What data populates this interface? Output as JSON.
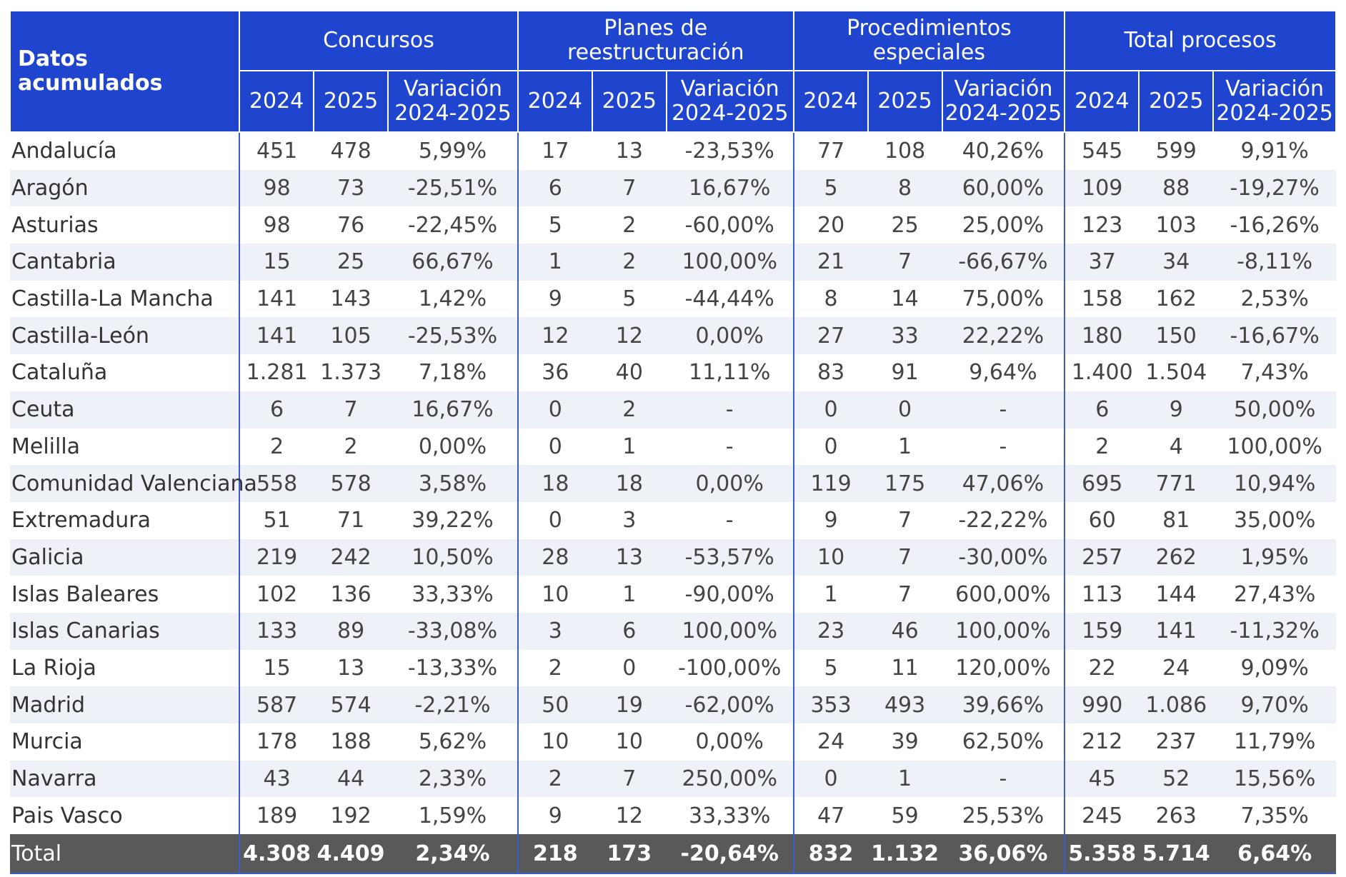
{
  "chart_data": {
    "type": "table",
    "corner_label": "Datos acumulados",
    "groups": [
      "Concursos",
      "Planes de reestructuración",
      "Procedimientos especiales",
      "Total procesos"
    ],
    "subheaders": [
      "2024",
      "2025",
      "Variación 2024-2025"
    ],
    "rows": [
      {
        "region": "Andalucía",
        "values": [
          "451",
          "478",
          "5,99%",
          "17",
          "13",
          "-23,53%",
          "77",
          "108",
          "40,26%",
          "545",
          "599",
          "9,91%"
        ]
      },
      {
        "region": "Aragón",
        "values": [
          "98",
          "73",
          "-25,51%",
          "6",
          "7",
          "16,67%",
          "5",
          "8",
          "60,00%",
          "109",
          "88",
          "-19,27%"
        ]
      },
      {
        "region": "Asturias",
        "values": [
          "98",
          "76",
          "-22,45%",
          "5",
          "2",
          "-60,00%",
          "20",
          "25",
          "25,00%",
          "123",
          "103",
          "-16,26%"
        ]
      },
      {
        "region": "Cantabria",
        "values": [
          "15",
          "25",
          "66,67%",
          "1",
          "2",
          "100,00%",
          "21",
          "7",
          "-66,67%",
          "37",
          "34",
          "-8,11%"
        ]
      },
      {
        "region": "Castilla-La Mancha",
        "values": [
          "141",
          "143",
          "1,42%",
          "9",
          "5",
          "-44,44%",
          "8",
          "14",
          "75,00%",
          "158",
          "162",
          "2,53%"
        ]
      },
      {
        "region": "Castilla-León",
        "values": [
          "141",
          "105",
          "-25,53%",
          "12",
          "12",
          "0,00%",
          "27",
          "33",
          "22,22%",
          "180",
          "150",
          "-16,67%"
        ]
      },
      {
        "region": "Cataluña",
        "values": [
          "1.281",
          "1.373",
          "7,18%",
          "36",
          "40",
          "11,11%",
          "83",
          "91",
          "9,64%",
          "1.400",
          "1.504",
          "7,43%"
        ]
      },
      {
        "region": "Ceuta",
        "values": [
          "6",
          "7",
          "16,67%",
          "0",
          "2",
          "-",
          "0",
          "0",
          "-",
          "6",
          "9",
          "50,00%"
        ]
      },
      {
        "region": "Melilla",
        "values": [
          "2",
          "2",
          "0,00%",
          "0",
          "1",
          "-",
          "0",
          "1",
          "-",
          "2",
          "4",
          "100,00%"
        ]
      },
      {
        "region": "Comunidad Valenciana",
        "values": [
          "558",
          "578",
          "3,58%",
          "18",
          "18",
          "0,00%",
          "119",
          "175",
          "47,06%",
          "695",
          "771",
          "10,94%"
        ]
      },
      {
        "region": "Extremadura",
        "values": [
          "51",
          "71",
          "39,22%",
          "0",
          "3",
          "-",
          "9",
          "7",
          "-22,22%",
          "60",
          "81",
          "35,00%"
        ]
      },
      {
        "region": "Galicia",
        "values": [
          "219",
          "242",
          "10,50%",
          "28",
          "13",
          "-53,57%",
          "10",
          "7",
          "-30,00%",
          "257",
          "262",
          "1,95%"
        ]
      },
      {
        "region": "Islas Baleares",
        "values": [
          "102",
          "136",
          "33,33%",
          "10",
          "1",
          "-90,00%",
          "1",
          "7",
          "600,00%",
          "113",
          "144",
          "27,43%"
        ]
      },
      {
        "region": "Islas Canarias",
        "values": [
          "133",
          "89",
          "-33,08%",
          "3",
          "6",
          "100,00%",
          "23",
          "46",
          "100,00%",
          "159",
          "141",
          "-11,32%"
        ]
      },
      {
        "region": "La Rioja",
        "values": [
          "15",
          "13",
          "-13,33%",
          "2",
          "0",
          "-100,00%",
          "5",
          "11",
          "120,00%",
          "22",
          "24",
          "9,09%"
        ]
      },
      {
        "region": "Madrid",
        "values": [
          "587",
          "574",
          "-2,21%",
          "50",
          "19",
          "-62,00%",
          "353",
          "493",
          "39,66%",
          "990",
          "1.086",
          "9,70%"
        ]
      },
      {
        "region": "Murcia",
        "values": [
          "178",
          "188",
          "5,62%",
          "10",
          "10",
          "0,00%",
          "24",
          "39",
          "62,50%",
          "212",
          "237",
          "11,79%"
        ]
      },
      {
        "region": "Navarra",
        "values": [
          "43",
          "44",
          "2,33%",
          "2",
          "7",
          "250,00%",
          "0",
          "1",
          "-",
          "45",
          "52",
          "15,56%"
        ]
      },
      {
        "region": "Pais Vasco",
        "values": [
          "189",
          "192",
          "1,59%",
          "9",
          "12",
          "33,33%",
          "47",
          "59",
          "25,53%",
          "245",
          "263",
          "7,35%"
        ]
      }
    ],
    "total": {
      "region": "Total",
      "values": [
        "4.308",
        "4.409",
        "2,34%",
        "218",
        "173",
        "-20,64%",
        "832",
        "1.132",
        "36,06%",
        "5.358",
        "5.714",
        "6,64%"
      ]
    },
    "header_color": "#1f45cf",
    "total_row_color": "#595959",
    "stripe_color": "#eef1f8",
    "divider_color": "#3d5bc9"
  }
}
